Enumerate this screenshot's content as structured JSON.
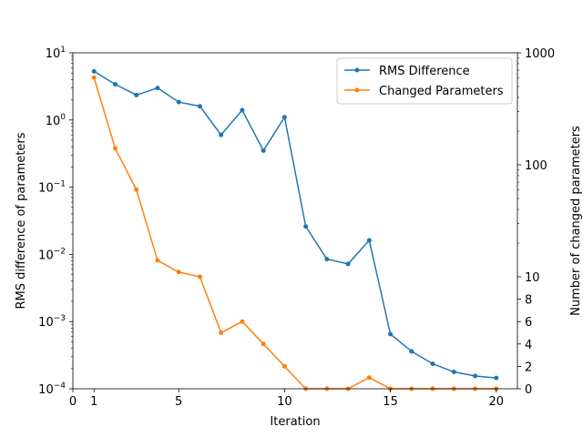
{
  "chart_data": {
    "type": "line",
    "xlabel": "Iteration",
    "ylabel_left": "RMS difference of parameters",
    "ylabel_right": "Number of changed parameters",
    "x": [
      1,
      2,
      3,
      4,
      5,
      6,
      7,
      8,
      9,
      10,
      11,
      12,
      13,
      14,
      15,
      16,
      17,
      18,
      19,
      20
    ],
    "xlim": [
      0,
      21
    ],
    "x_ticks": [
      0,
      1,
      5,
      10,
      15,
      20
    ],
    "x_tick_labels": [
      "0",
      "1",
      "5",
      "10",
      "15",
      "20"
    ],
    "y_left_scale": "log",
    "y_left_lim": [
      0.0001,
      10
    ],
    "y_left_ticks": [
      0.0001,
      0.001,
      0.01,
      0.1,
      1,
      10
    ],
    "y_left_tick_labels": [
      {
        "base": "10",
        "exp": "−4"
      },
      {
        "base": "10",
        "exp": "−3"
      },
      {
        "base": "10",
        "exp": "−2"
      },
      {
        "base": "10",
        "exp": "−1"
      },
      {
        "base": "10",
        "exp": "0"
      },
      {
        "base": "10",
        "exp": "1"
      }
    ],
    "y_right_scale": "symlog",
    "y_right_linthresh": 10,
    "y_right_lim": [
      0,
      1000
    ],
    "y_right_ticks": [
      0,
      2,
      4,
      6,
      8,
      10,
      100,
      1000
    ],
    "y_right_tick_labels": [
      "0",
      "2",
      "4",
      "6",
      "8",
      "10",
      "100",
      "1000"
    ],
    "legend_position": "top-right",
    "grid": false,
    "series": [
      {
        "name": "RMS Difference",
        "axis": "left",
        "color": "#1f77b4",
        "values": [
          5.3,
          3.4,
          2.35,
          3.0,
          1.85,
          1.6,
          0.6,
          1.4,
          0.35,
          1.1,
          0.026,
          0.0085,
          0.0072,
          0.0162,
          0.00065,
          0.00036,
          0.000235,
          0.000178,
          0.000155,
          0.000145
        ]
      },
      {
        "name": "Changed Parameters",
        "axis": "right",
        "color": "#ff7f0e",
        "values": [
          600,
          140,
          60,
          14,
          11,
          10,
          5,
          6,
          4,
          2,
          0,
          0,
          0,
          1,
          0,
          0,
          0,
          0,
          0,
          0
        ]
      }
    ]
  }
}
